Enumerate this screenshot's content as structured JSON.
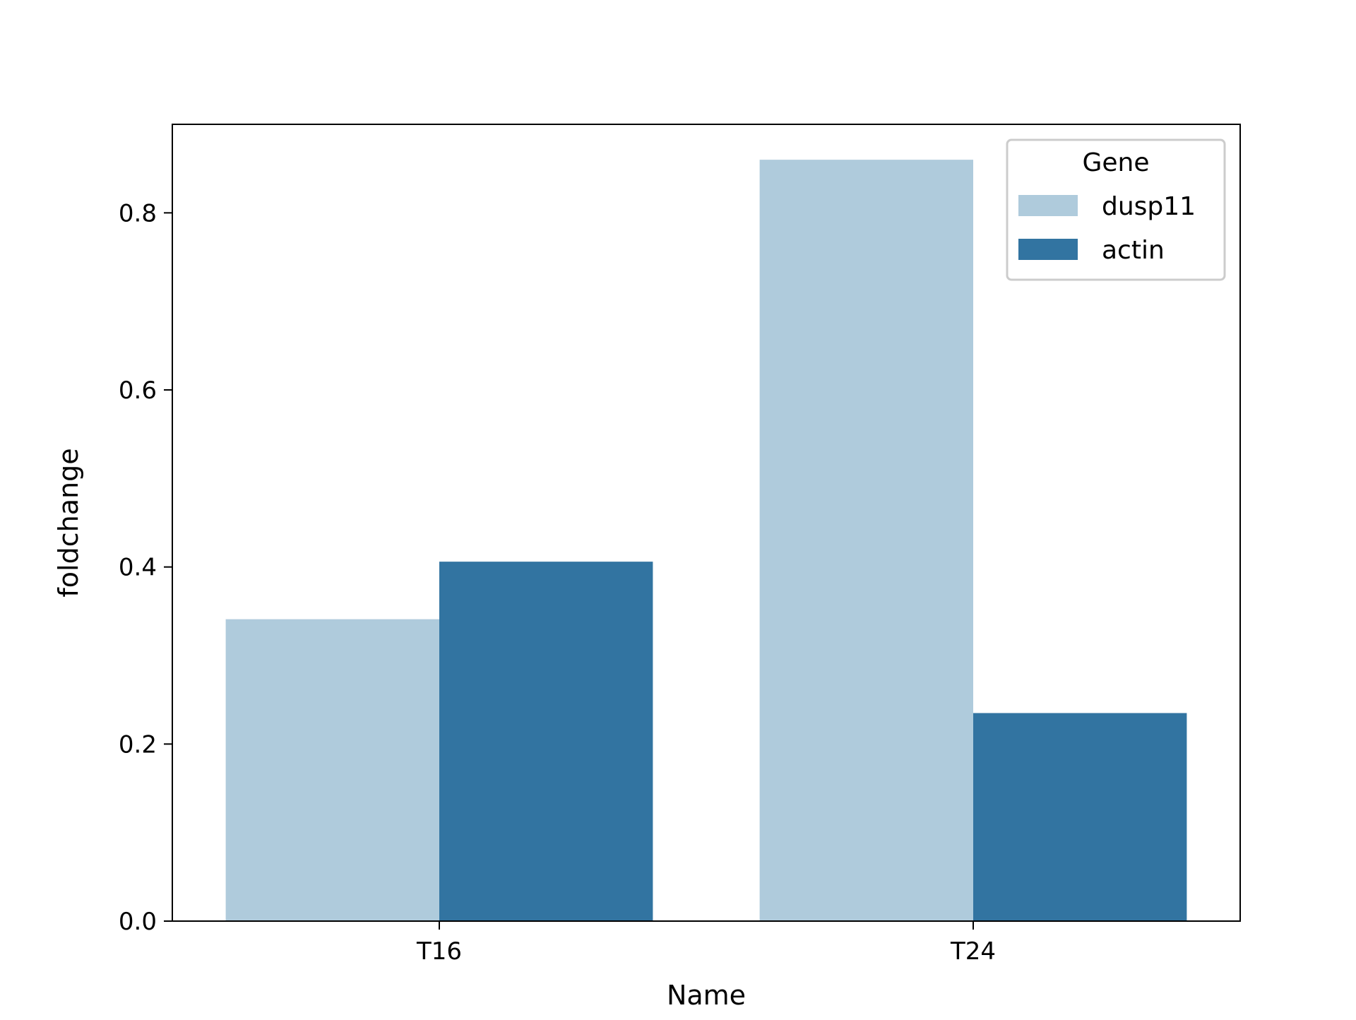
{
  "chart_data": {
    "type": "bar",
    "title": "",
    "xlabel": "Name",
    "ylabel": "foldchange",
    "categories": [
      "T16",
      "T24"
    ],
    "series": [
      {
        "name": "dusp11",
        "values": [
          0.341,
          0.86
        ],
        "color": "#afcbdc"
      },
      {
        "name": "actin",
        "values": [
          0.406,
          0.235
        ],
        "color": "#3274a1"
      }
    ],
    "ylim": [
      0,
      0.9
    ],
    "yticks": [
      0.0,
      0.2,
      0.4,
      0.6,
      0.8
    ],
    "ytick_labels": [
      "0.0",
      "0.2",
      "0.4",
      "0.6",
      "0.8"
    ],
    "legend": {
      "title": "Gene",
      "position": "top-right"
    },
    "grid": false
  }
}
